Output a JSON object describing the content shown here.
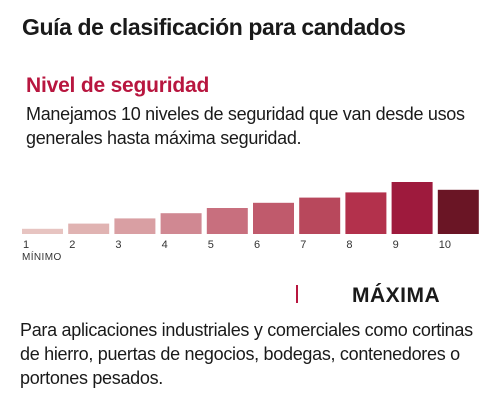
{
  "title": "Guía de clasificación para candados",
  "section": {
    "title": "Nivel de seguridad",
    "description": "Manejamos 10 niveles de seguridad que van desde usos generales hasta máxima seguridad."
  },
  "chart_data": {
    "type": "bar",
    "categories": [
      "1",
      "2",
      "3",
      "4",
      "5",
      "6",
      "7",
      "8",
      "9",
      "10"
    ],
    "values": [
      1,
      2,
      3,
      4,
      5,
      6,
      7,
      8,
      10,
      8.5
    ],
    "colors": [
      "#e7c4c1",
      "#e0b3b2",
      "#d99fa3",
      "#d08892",
      "#c86f7e",
      "#c05a6c",
      "#b8485c",
      "#b3314c",
      "#9e1a3d",
      "#6a1525"
    ],
    "min_label": "MÍNIMO",
    "ylim": [
      0,
      10
    ],
    "grid": false
  },
  "selected": {
    "name": "MÁXIMA",
    "description": "Para aplicaciones industriales y comerciales como cortinas de hierro, puertas de negocios, bodegas, contenedores o portones pesados."
  }
}
